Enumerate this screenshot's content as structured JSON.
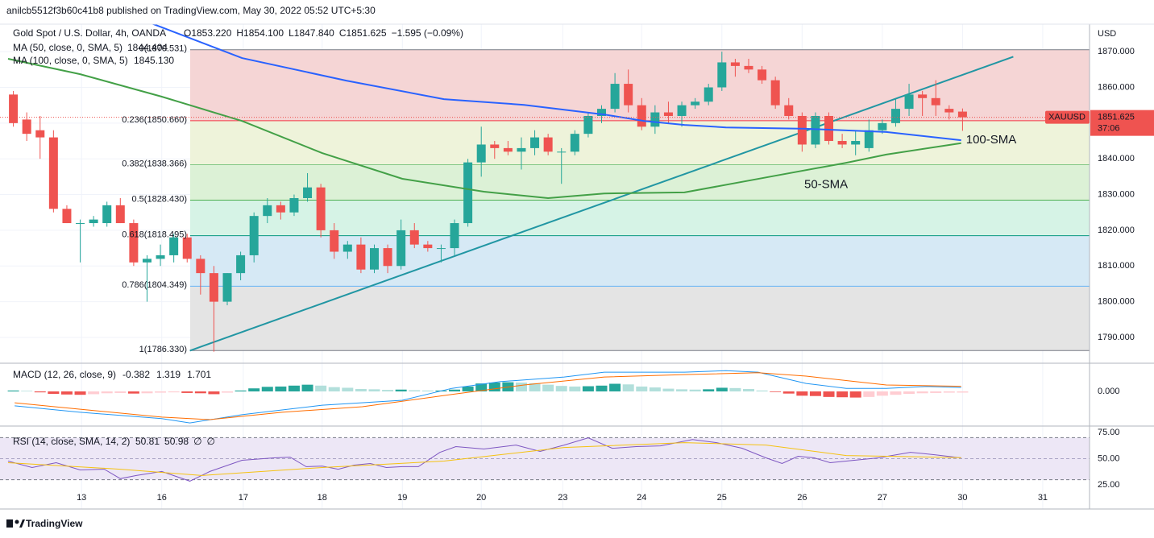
{
  "header": "anilcb5512f3b60c41b8 published on TradingView.com, May 30, 2022 05:52 UTC+5:30",
  "footer": "TradingView",
  "chart_data": {
    "type": "candlestick",
    "symbol": "Gold Spot / U.S. Dollar, 4h, OANDA",
    "ohlc_legend": [
      "O1853.220",
      "H1854.100",
      "L1847.840",
      "C1851.625",
      "−1.595 (−0.09%)"
    ],
    "currency": "USD",
    "ticker": "XAUUSD",
    "last_price": {
      "value": 1851.625,
      "label": "1851.625"
    },
    "countdown": "37:06",
    "up_color": "#26a69a",
    "down_color": "#ef5350",
    "xlim": [
      -1,
      80.5
    ],
    "xticks": [
      {
        "value": 5.1,
        "label": "13"
      },
      {
        "value": 11.1,
        "label": "16"
      },
      {
        "value": 17.2,
        "label": "17"
      },
      {
        "value": 23.1,
        "label": "18"
      },
      {
        "value": 29.1,
        "label": "19"
      },
      {
        "value": 35.0,
        "label": "20"
      },
      {
        "value": 41.1,
        "label": "23"
      },
      {
        "value": 47.0,
        "label": "24"
      },
      {
        "value": 53.0,
        "label": "25"
      },
      {
        "value": 59.0,
        "label": "26"
      },
      {
        "value": 65.0,
        "label": "27"
      },
      {
        "value": 71.0,
        "label": "30"
      },
      {
        "value": 77.0,
        "label": "31"
      }
    ],
    "ylim": [
      1783,
      1877.7
    ],
    "yticks": [
      {
        "value": 1790,
        "label": "1790.000"
      },
      {
        "value": 1800,
        "label": "1800.000"
      },
      {
        "value": 1810,
        "label": "1810.000"
      },
      {
        "value": 1820,
        "label": "1820.000"
      },
      {
        "value": 1830,
        "label": "1830.000"
      },
      {
        "value": 1840,
        "label": "1840.000"
      },
      {
        "value": 1850,
        "label": "1850.000"
      },
      {
        "value": 1860,
        "label": "1860.000"
      },
      {
        "value": 1870,
        "label": "1870.000"
      }
    ],
    "grid": true,
    "candles": [
      [
        1858,
        1859,
        1849,
        1850
      ],
      [
        1851,
        1853,
        1845,
        1847
      ],
      [
        1848,
        1852,
        1840,
        1846
      ],
      [
        1846,
        1848,
        1825,
        1826
      ],
      [
        1826,
        1827,
        1822,
        1822
      ],
      [
        1822,
        1823,
        1811,
        1822
      ],
      [
        1822,
        1824,
        1821,
        1823
      ],
      [
        1822,
        1828,
        1821,
        1827
      ],
      [
        1827,
        1829,
        1822,
        1822
      ],
      [
        1822,
        1823,
        1810,
        1811
      ],
      [
        1811,
        1813,
        1800,
        1812
      ],
      [
        1812,
        1816,
        1810,
        1813
      ],
      [
        1813,
        1819,
        1811,
        1818
      ],
      [
        1818,
        1819,
        1811,
        1812
      ],
      [
        1812,
        1813,
        1802,
        1808
      ],
      [
        1808,
        1810,
        1786,
        1800
      ],
      [
        1800,
        1808,
        1799,
        1808
      ],
      [
        1808,
        1814,
        1806,
        1813
      ],
      [
        1813,
        1825,
        1811,
        1824
      ],
      [
        1824,
        1829,
        1822,
        1827
      ],
      [
        1827,
        1828,
        1823,
        1825
      ],
      [
        1825,
        1830,
        1824,
        1829
      ],
      [
        1829,
        1836,
        1828,
        1832
      ],
      [
        1832,
        1833,
        1818,
        1820
      ],
      [
        1820,
        1822,
        1812,
        1814
      ],
      [
        1814,
        1817,
        1812,
        1816
      ],
      [
        1816,
        1818,
        1808,
        1809
      ],
      [
        1809,
        1816,
        1808,
        1815
      ],
      [
        1815,
        1816,
        1808,
        1810
      ],
      [
        1810,
        1823,
        1809,
        1820
      ],
      [
        1820,
        1822,
        1815,
        1816
      ],
      [
        1816,
        1817,
        1814,
        1815
      ],
      [
        1815,
        1816,
        1811,
        1815
      ],
      [
        1815,
        1823,
        1813,
        1822
      ],
      [
        1822,
        1840,
        1821,
        1839
      ],
      [
        1839,
        1849,
        1835,
        1844
      ],
      [
        1844,
        1845,
        1840,
        1843
      ],
      [
        1843,
        1845,
        1841,
        1842
      ],
      [
        1842,
        1846,
        1837,
        1843
      ],
      [
        1843,
        1848,
        1841,
        1846
      ],
      [
        1846,
        1847,
        1841,
        1842
      ],
      [
        1842,
        1843,
        1833,
        1842
      ],
      [
        1842,
        1848,
        1841,
        1847
      ],
      [
        1847,
        1853,
        1846,
        1852
      ],
      [
        1852,
        1855,
        1850,
        1854
      ],
      [
        1854,
        1864,
        1853,
        1861
      ],
      [
        1861,
        1865,
        1853,
        1855
      ],
      [
        1855,
        1857,
        1848,
        1849
      ],
      [
        1849,
        1855,
        1847,
        1853
      ],
      [
        1853,
        1856,
        1850,
        1852
      ],
      [
        1852,
        1856,
        1849,
        1855
      ],
      [
        1855,
        1857,
        1854,
        1856
      ],
      [
        1856,
        1861,
        1855,
        1860
      ],
      [
        1860,
        1870,
        1859,
        1867
      ],
      [
        1867,
        1868,
        1863,
        1866
      ],
      [
        1866,
        1868,
        1864,
        1865
      ],
      [
        1865,
        1866,
        1861,
        1862
      ],
      [
        1862,
        1863,
        1854,
        1855
      ],
      [
        1855,
        1857,
        1851,
        1852
      ],
      [
        1852,
        1853,
        1842,
        1844
      ],
      [
        1844,
        1853,
        1843,
        1852
      ],
      [
        1852,
        1853,
        1844,
        1845
      ],
      [
        1845,
        1847,
        1843,
        1844
      ],
      [
        1844,
        1848,
        1841,
        1845
      ],
      [
        1843,
        1851,
        1842,
        1848
      ],
      [
        1848,
        1851,
        1847,
        1850
      ],
      [
        1850,
        1857,
        1849,
        1854
      ],
      [
        1854,
        1861,
        1852,
        1858
      ],
      [
        1858,
        1859,
        1852,
        1857
      ],
      [
        1857,
        1862,
        1852,
        1855
      ],
      [
        1854,
        1855,
        1851,
        1853
      ],
      [
        1853.22,
        1854.1,
        1847.84,
        1851.625
      ]
    ],
    "fib_levels": [
      {
        "label": "0(1870.531)",
        "value": 1870.531,
        "color": "#787b86",
        "fill": "#f5d5d5"
      },
      {
        "label": "0.236(1850.660)",
        "value": 1850.66,
        "color": "#f23645",
        "fill": "#eef3da"
      },
      {
        "label": "0.382(1838.366)",
        "value": 1838.366,
        "color": "#81c784",
        "fill": "#dcf1d6"
      },
      {
        "label": "0.5(1828.430)",
        "value": 1828.43,
        "color": "#4caf50",
        "fill": "#d6f3e6"
      },
      {
        "label": "0.618(1818.495)",
        "value": 1818.495,
        "color": "#089981",
        "fill": "#d6e9f5"
      },
      {
        "label": "0.786(1804.349)",
        "value": 1804.349,
        "color": "#64b5f6",
        "fill": "#e4e4e4"
      },
      {
        "label": "1(1786.330)",
        "value": 1786.33,
        "color": "#787b86"
      }
    ],
    "trendline": {
      "color": "#2196a3",
      "x": [
        13.2,
        74.8
      ],
      "values": [
        1786.3,
        1868.6
      ]
    },
    "series": [
      {
        "name": "MA (50, close, 0, SMA, 5)",
        "value_label": "1844.404",
        "annotation": "50-SMA",
        "color": "#43a047",
        "x": [
          -0.4,
          5.0,
          11.1,
          17.1,
          23.1,
          29.1,
          35.2,
          40.0,
          44.2,
          50.2,
          56.3,
          62.3,
          65.3,
          70.9
        ],
        "values": [
          1868.0,
          1863.7,
          1857.4,
          1850.6,
          1841.6,
          1834.4,
          1830.8,
          1829.0,
          1830.3,
          1830.6,
          1834.8,
          1838.9,
          1841.2,
          1844.4
        ]
      },
      {
        "name": "MA (100, close, 0, SMA, 5)",
        "value_label": "1845.130",
        "annotation": "100-SMA",
        "color": "#2962ff",
        "x": [
          10.2,
          17.1,
          24.9,
          32.2,
          38.2,
          44.2,
          47.2,
          50.2,
          53.3,
          59.3,
          65.3,
          70.9
        ],
        "values": [
          1878.1,
          1868.2,
          1861.9,
          1856.7,
          1855.1,
          1852.4,
          1850.6,
          1849.5,
          1848.8,
          1848.4,
          1847.5,
          1845.2
        ]
      }
    ],
    "macd": {
      "title": "MACD (12, 26, close, 9)",
      "legend_values": [
        {
          "label": "-0.382",
          "color": "#ef5350"
        },
        {
          "label": "1.319",
          "color": "#2196f3"
        },
        {
          "label": "1.701",
          "color": "#ff6d00"
        }
      ],
      "ylim": [
        -11.05,
        8.95
      ],
      "yticks": [
        {
          "value": 0,
          "label": "0.000"
        }
      ],
      "hist_colors": [
        "#26a69a",
        "#b2dfdb",
        "#ef5350",
        "#ffcdd2"
      ],
      "histogram": [
        0.3,
        0.2,
        -0.3,
        -0.8,
        -1.0,
        -1.1,
        -0.9,
        -0.6,
        -0.5,
        -0.7,
        -0.6,
        -0.4,
        -0.3,
        -0.5,
        -0.6,
        -0.9,
        -0.4,
        0.3,
        1.0,
        1.5,
        1.6,
        1.9,
        2.2,
        1.9,
        1.4,
        1.2,
        0.8,
        0.7,
        0.5,
        0.6,
        0.4,
        0.3,
        0.3,
        0.6,
        1.6,
        2.6,
        2.9,
        3.0,
        2.9,
        2.7,
        2.2,
        1.8,
        1.6,
        1.7,
        1.9,
        2.5,
        2.3,
        1.6,
        1.3,
        0.9,
        0.7,
        0.6,
        0.7,
        1.2,
        1.1,
        0.8,
        0.3,
        -0.2,
        -0.7,
        -1.4,
        -1.5,
        -1.8,
        -1.9,
        -2.0,
        -1.8,
        -1.4,
        -1.1,
        -0.8,
        -0.6,
        -0.5,
        -0.4,
        -0.382
      ],
      "lines": [
        {
          "color": "#2196f3",
          "x": [
            0.1,
            5.0,
            11.1,
            13.2,
            17.1,
            23.1,
            29.1,
            32.8,
            36.4,
            41.2,
            44.2,
            50.2,
            53.3,
            55.7,
            59.3,
            62.3,
            65.3,
            68.3,
            70.9
          ],
          "values": [
            -4.7,
            -6.8,
            -8.9,
            -10.3,
            -7.6,
            -4.5,
            -2.9,
            1.0,
            3.2,
            4.7,
            6.3,
            6.3,
            6.8,
            6.3,
            2.6,
            1.0,
            1.0,
            1.6,
            1.3
          ]
        },
        {
          "color": "#ff6d00",
          "x": [
            0.1,
            5.0,
            11.1,
            14.7,
            20.1,
            26.1,
            32.8,
            38.2,
            44.2,
            50.2,
            55.7,
            59.3,
            65.3,
            70.9
          ],
          "values": [
            -3.7,
            -5.8,
            -8.4,
            -9.2,
            -6.8,
            -5.0,
            -1.0,
            2.1,
            4.7,
            5.5,
            6.1,
            5.0,
            2.1,
            1.7
          ]
        }
      ]
    },
    "rsi": {
      "title": "RSI (14, close, SMA, 14, 2)",
      "legend_values": [
        {
          "label": "50.81",
          "color": "#7e57c2"
        },
        {
          "label": "50.98",
          "color": "#f5c211"
        },
        {
          "label": "∅",
          "color": "#7e57c2"
        },
        {
          "label": "∅",
          "color": "#7e57c2"
        }
      ],
      "ylim": [
        2.1,
        80.3
      ],
      "yticks": [
        {
          "value": 25,
          "label": "25.00"
        },
        {
          "value": 50,
          "label": "50.00"
        },
        {
          "value": 75,
          "label": "75.00"
        }
      ],
      "band": [
        30,
        70
      ],
      "lines": [
        {
          "color": "#7e57c2",
          "x": [
            -0.4,
            1.4,
            3.2,
            5.0,
            6.8,
            8.0,
            9.2,
            11.1,
            13.2,
            14.7,
            17.1,
            19.5,
            20.7,
            21.9,
            23.1,
            24.3,
            25.5,
            26.7,
            27.9,
            29.1,
            30.3,
            31.9,
            33.1,
            35.2,
            37.6,
            39.4,
            41.2,
            43.0,
            44.8,
            46.6,
            48.4,
            50.8,
            52.6,
            54.5,
            56.3,
            57.5,
            58.7,
            59.9,
            61.1,
            62.9,
            64.7,
            67.1,
            68.9,
            70.9
          ],
          "values": [
            47.7,
            41.6,
            46.2,
            39.3,
            40,
            31,
            34,
            37.8,
            28.6,
            37.8,
            48.5,
            50.8,
            51.5,
            42.4,
            43,
            40,
            43.9,
            45.4,
            41.6,
            42.4,
            42.4,
            56,
            61.5,
            59.2,
            63,
            56.9,
            63,
            69.8,
            59.9,
            61.5,
            62.2,
            68.3,
            65.3,
            60,
            50.8,
            45.4,
            52.3,
            50.8,
            46.2,
            48.5,
            50.8,
            56.1,
            53.8,
            50.81
          ]
        },
        {
          "color": "#f5c211",
          "x": [
            -0.4,
            8.0,
            14.1,
            23.1,
            32.2,
            41.2,
            50.2,
            56.3,
            62.3,
            70.9
          ],
          "values": [
            46.2,
            40,
            34,
            41.6,
            47.7,
            60.7,
            65.3,
            63,
            53,
            50.98
          ]
        }
      ]
    }
  }
}
